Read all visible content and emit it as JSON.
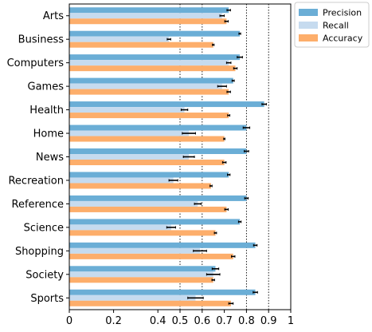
{
  "chart_data": {
    "type": "bar",
    "orientation": "horizontal",
    "categories": [
      "Arts",
      "Business",
      "Computers",
      "Games",
      "Health",
      "Home",
      "News",
      "Recreation",
      "Reference",
      "Science",
      "Shopping",
      "Society",
      "Sports"
    ],
    "series": [
      {
        "name": "Precision",
        "color": "#6baed6",
        "values": [
          0.72,
          0.77,
          0.77,
          0.74,
          0.88,
          0.8,
          0.8,
          0.72,
          0.8,
          0.77,
          0.84,
          0.66,
          0.84
        ],
        "errors": [
          0.008,
          0.004,
          0.012,
          0.005,
          0.01,
          0.015,
          0.01,
          0.006,
          0.008,
          0.006,
          0.008,
          0.015,
          0.01
        ]
      },
      {
        "name": "Recall",
        "color": "#c6dbef",
        "values": [
          0.69,
          0.45,
          0.72,
          0.69,
          0.52,
          0.54,
          0.54,
          0.47,
          0.58,
          0.46,
          0.59,
          0.65,
          0.57
        ],
        "errors": [
          0.01,
          0.008,
          0.01,
          0.02,
          0.015,
          0.03,
          0.025,
          0.02,
          0.015,
          0.02,
          0.03,
          0.03,
          0.035
        ]
      },
      {
        "name": "Accuracy",
        "color": "#fdae6b",
        "values": [
          0.71,
          0.65,
          0.75,
          0.72,
          0.72,
          0.7,
          0.7,
          0.64,
          0.71,
          0.66,
          0.74,
          0.65,
          0.73
        ],
        "errors": [
          0.008,
          0.004,
          0.008,
          0.008,
          0.005,
          0.003,
          0.008,
          0.005,
          0.008,
          0.005,
          0.008,
          0.006,
          0.01
        ]
      }
    ],
    "x_ticks": [
      "0",
      "0.2",
      "0.4",
      "0.5",
      "0.6",
      "0.7",
      "0.8",
      "0.9",
      "1"
    ],
    "x_tick_values": [
      0,
      0.2,
      0.4,
      0.5,
      0.6,
      0.7,
      0.8,
      0.9,
      1
    ],
    "xlim": [
      0,
      1
    ],
    "reference_lines": [
      0.5,
      0.6,
      0.8,
      0.9
    ],
    "legend_position": "outside top-right",
    "title": "",
    "xlabel": "",
    "ylabel": ""
  }
}
